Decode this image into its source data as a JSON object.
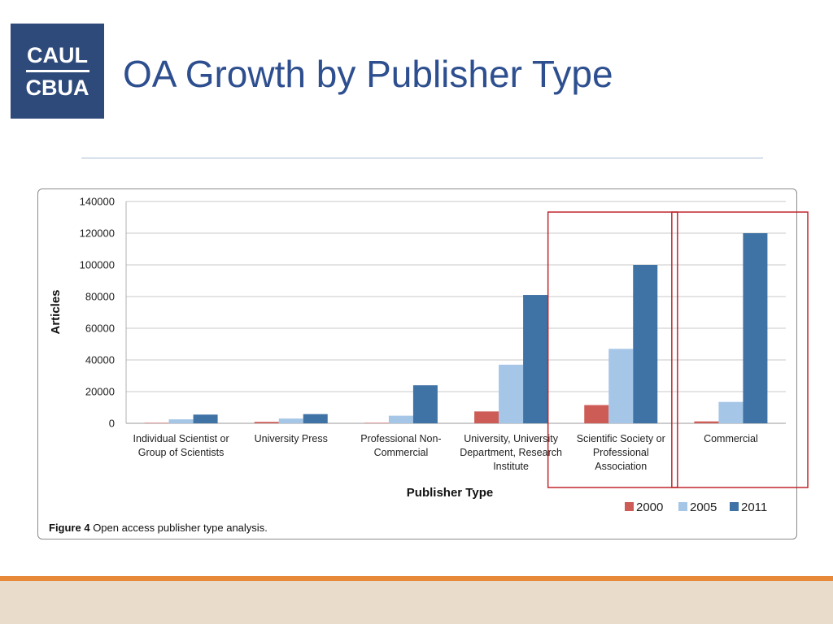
{
  "logo": {
    "line1": "CAUL",
    "line2": "CBUA"
  },
  "slide": {
    "title": "OA Growth by Publisher Type"
  },
  "figure": {
    "caption_bold": "Figure 4",
    "caption_rest": " Open access publisher type analysis."
  },
  "colors": {
    "logo_bg": "#2e4a7a",
    "title": "#2e4f8f",
    "series_2000": "#cd5b56",
    "series_2005": "#a5c6e6",
    "series_2011": "#3f72a5",
    "highlight_box": "#c0272d",
    "footer_orange": "#e8893a",
    "footer_band": "#e9dccb"
  },
  "chart_data": {
    "type": "bar",
    "title": "",
    "xlabel": "Publisher Type",
    "ylabel": "Articles",
    "ylim": [
      0,
      140000
    ],
    "yticks": [
      0,
      20000,
      40000,
      60000,
      80000,
      100000,
      120000,
      140000
    ],
    "grid": true,
    "legend_position": "bottom-right",
    "categories": [
      [
        "Individual Scientist or",
        "Group of Scientists"
      ],
      [
        "University Press"
      ],
      [
        "Professional Non-",
        "Commercial"
      ],
      [
        "University, University",
        "Department, Research",
        "Institute"
      ],
      [
        "Scientific Society or",
        "Professional",
        "Association"
      ],
      [
        "Commercial"
      ]
    ],
    "series": [
      {
        "name": "2000",
        "color": "#cd5b56",
        "values": [
          300,
          900,
          300,
          7500,
          11500,
          1200
        ]
      },
      {
        "name": "2005",
        "color": "#a5c6e6",
        "values": [
          2500,
          3000,
          4800,
          37000,
          47000,
          13500
        ]
      },
      {
        "name": "2011",
        "color": "#3f72a5",
        "values": [
          5500,
          5800,
          24000,
          81000,
          100000,
          120000
        ]
      }
    ],
    "highlighted_categories": [
      4,
      5
    ]
  }
}
